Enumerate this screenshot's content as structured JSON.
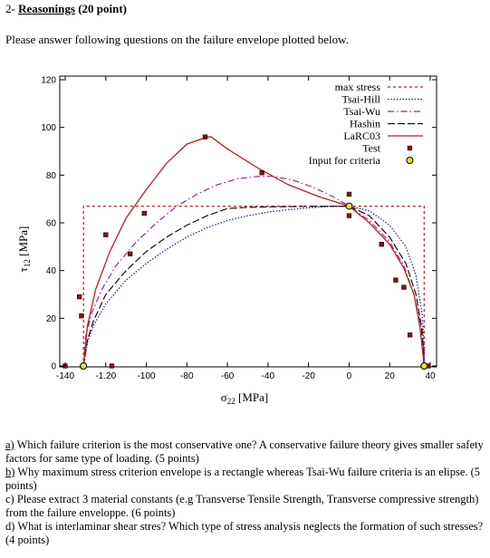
{
  "heading": {
    "number": "2-",
    "title": "Reasonings",
    "points": "(20 point)"
  },
  "intro": "Please answer following questions on the failure envelope plotted below.",
  "questions": [
    {
      "label": "a)",
      "text": "Which failure criterion is the most conservative one? A conservative failure theory gives smaller safety factors for same type of loading. (5 points)"
    },
    {
      "label": "b)",
      "text": "Why maximum stress criterion envelope is a rectangle whereas Tsai-Wu failure criteria is an elipse. (5 points)"
    },
    {
      "label": "c)",
      "text": "Please extract 3 material constants (e.g Transverse Tensile Strength, Transverse compressive strength) from the failure enveloppe. (6 points)"
    },
    {
      "label": "d)",
      "text": "What is interlaminar shear stres? Which type of stress analysis neglects the formation of such stresses? (4 points)"
    }
  ],
  "chart_data": {
    "type": "line",
    "xlabel": "σ22 [MPa]",
    "ylabel": "τ12 [MPa]",
    "xlim": [
      -140,
      40
    ],
    "ylim": [
      0,
      120
    ],
    "x_ticks": [
      "-140",
      "-1.20",
      "-100",
      "-80",
      "-60",
      "-40",
      "-20",
      "0",
      "20",
      "40"
    ],
    "y_ticks": [
      "0",
      "20",
      "40",
      "60",
      "80",
      "100",
      "120"
    ],
    "legend_position": "top-right",
    "grid": false,
    "series": [
      {
        "name": "max stress",
        "color": "#c01818",
        "style": "dotted-dash",
        "points": [
          [
            -131,
            0
          ],
          [
            -131,
            67
          ],
          [
            37,
            67
          ],
          [
            37,
            0
          ]
        ]
      },
      {
        "name": "Tsai-Hill",
        "color": "#1a1a90",
        "style": "dotted",
        "points": [
          [
            -131,
            0
          ],
          [
            -129,
            10
          ],
          [
            -126,
            17
          ],
          [
            -120,
            26
          ],
          [
            -110,
            36
          ],
          [
            -100,
            43
          ],
          [
            -90,
            49
          ],
          [
            -80,
            54
          ],
          [
            -70,
            58
          ],
          [
            -60,
            61
          ],
          [
            -50,
            63
          ],
          [
            -40,
            64.5
          ],
          [
            -30,
            65.5
          ],
          [
            -20,
            66.3
          ],
          [
            -10,
            66.8
          ],
          [
            0,
            67
          ],
          [
            10,
            65
          ],
          [
            20,
            59
          ],
          [
            28,
            50
          ],
          [
            33,
            38
          ],
          [
            36,
            22
          ],
          [
            37,
            8
          ],
          [
            37,
            0
          ]
        ]
      },
      {
        "name": "Tsai-Wu",
        "color": "#a0229a",
        "style": "dash-dot",
        "points": [
          [
            -131,
            0
          ],
          [
            -130,
            12
          ],
          [
            -127,
            22
          ],
          [
            -122,
            32
          ],
          [
            -115,
            42
          ],
          [
            -105,
            52
          ],
          [
            -95,
            60
          ],
          [
            -85,
            67
          ],
          [
            -75,
            72
          ],
          [
            -65,
            76
          ],
          [
            -55,
            78.5
          ],
          [
            -45,
            79.5
          ],
          [
            -38,
            79.5
          ],
          [
            -28,
            78
          ],
          [
            -18,
            75
          ],
          [
            -8,
            71
          ],
          [
            0,
            67
          ],
          [
            10,
            61
          ],
          [
            20,
            52
          ],
          [
            27,
            42
          ],
          [
            32,
            30
          ],
          [
            35,
            18
          ],
          [
            37,
            6
          ],
          [
            37,
            0
          ]
        ]
      },
      {
        "name": "Hashin",
        "color": "#111111",
        "style": "long-dash",
        "points": [
          [
            -131,
            0
          ],
          [
            -129,
            11
          ],
          [
            -126,
            19
          ],
          [
            -120,
            30
          ],
          [
            -110,
            40
          ],
          [
            -100,
            48
          ],
          [
            -90,
            54
          ],
          [
            -80,
            59
          ],
          [
            -70,
            63
          ],
          [
            -60,
            66
          ],
          [
            -50,
            66.5
          ],
          [
            -40,
            66.7
          ],
          [
            -20,
            66.9
          ],
          [
            0,
            67
          ],
          [
            10,
            63
          ],
          [
            20,
            54
          ],
          [
            28,
            43
          ],
          [
            33,
            30
          ],
          [
            36,
            15
          ],
          [
            37,
            0
          ]
        ]
      },
      {
        "name": "LaRC03",
        "color": "#bf1f1f",
        "style": "solid",
        "points": [
          [
            -131,
            0
          ],
          [
            -129,
            17
          ],
          [
            -125,
            32
          ],
          [
            -118,
            48
          ],
          [
            -110,
            62
          ],
          [
            -100,
            74
          ],
          [
            -90,
            85
          ],
          [
            -80,
            93
          ],
          [
            -70,
            96
          ],
          [
            -68,
            96
          ],
          [
            -60,
            91
          ],
          [
            -45,
            83
          ],
          [
            -30,
            76
          ],
          [
            -15,
            71
          ],
          [
            0,
            67
          ],
          [
            10,
            60
          ],
          [
            20,
            51
          ],
          [
            27,
            41
          ],
          [
            32,
            30
          ],
          [
            35,
            16
          ],
          [
            37,
            0
          ]
        ]
      }
    ],
    "test": {
      "name": "Test",
      "color": "#8b1010",
      "points": [
        [
          -140,
          0
        ],
        [
          -133,
          29
        ],
        [
          -132,
          21
        ],
        [
          -120,
          55
        ],
        [
          -117,
          0
        ],
        [
          -108,
          47
        ],
        [
          -101,
          64
        ],
        [
          -71,
          96
        ],
        [
          -43,
          81
        ],
        [
          0,
          72
        ],
        [
          0,
          63
        ],
        [
          16,
          51
        ],
        [
          23,
          36
        ],
        [
          27,
          33
        ],
        [
          30,
          13
        ],
        [
          37,
          0
        ],
        [
          39,
          0
        ]
      ]
    },
    "input": {
      "name": "Input for criteria",
      "color": "#f0e020",
      "points": [
        [
          -131,
          0
        ],
        [
          0,
          67
        ],
        [
          37,
          0
        ]
      ]
    }
  }
}
